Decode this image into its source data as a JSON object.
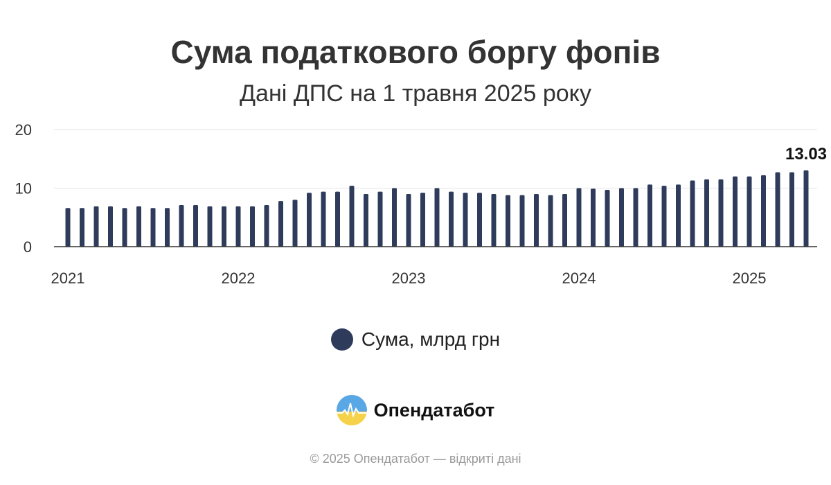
{
  "header": {
    "title": "Сума податкового боргу фопів",
    "subtitle": "Дані ДПС на 1 травня 2025 року"
  },
  "legend": {
    "label": "Сума, млрд грн",
    "color": "#2e3b5b"
  },
  "brand": {
    "name": "Опендатабот",
    "logo_top_color": "#5aa7e6",
    "logo_bottom_color": "#f6d24a"
  },
  "footer": {
    "text": "© 2025 Опендатабот — відкриті дані"
  },
  "chart_data": {
    "type": "bar",
    "ylim": [
      0,
      20
    ],
    "yticks": [
      0,
      10,
      20
    ],
    "xtick_labels": [
      "2021",
      "2022",
      "2023",
      "2024",
      "2025"
    ],
    "grid": true,
    "categories": [
      "2021-01",
      "2021-02",
      "2021-03",
      "2021-04",
      "2021-05",
      "2021-06",
      "2021-07",
      "2021-08",
      "2021-09",
      "2021-10",
      "2021-11",
      "2021-12",
      "2022-01",
      "2022-02",
      "2022-03",
      "2022-04",
      "2022-05",
      "2022-06",
      "2022-07",
      "2022-08",
      "2022-09",
      "2022-10",
      "2022-11",
      "2022-12",
      "2023-01",
      "2023-02",
      "2023-03",
      "2023-04",
      "2023-05",
      "2023-06",
      "2023-07",
      "2023-08",
      "2023-09",
      "2023-10",
      "2023-11",
      "2023-12",
      "2024-01",
      "2024-02",
      "2024-03",
      "2024-04",
      "2024-05",
      "2024-06",
      "2024-07",
      "2024-08",
      "2024-09",
      "2024-10",
      "2024-11",
      "2024-12",
      "2025-01",
      "2025-02",
      "2025-03",
      "2025-04",
      "2025-05"
    ],
    "series": [
      {
        "name": "Сума, млрд грн",
        "color": "#2e3b5b",
        "values": [
          6.6,
          6.6,
          6.9,
          6.9,
          6.6,
          6.9,
          6.6,
          6.6,
          7.1,
          7.1,
          6.9,
          6.9,
          6.9,
          6.9,
          7.1,
          7.8,
          8.0,
          9.2,
          9.4,
          9.4,
          10.4,
          9.0,
          9.4,
          10.0,
          9.0,
          9.2,
          10.0,
          9.4,
          9.2,
          9.2,
          9.0,
          8.8,
          8.8,
          9.0,
          8.8,
          9.0,
          10.0,
          9.9,
          9.7,
          10.0,
          10.0,
          10.6,
          10.4,
          10.6,
          11.3,
          11.5,
          11.5,
          12.0,
          12.0,
          12.2,
          12.7,
          12.7,
          13.03
        ]
      }
    ],
    "annotations": [
      {
        "category": "2025-05",
        "text": "13.03"
      }
    ]
  }
}
